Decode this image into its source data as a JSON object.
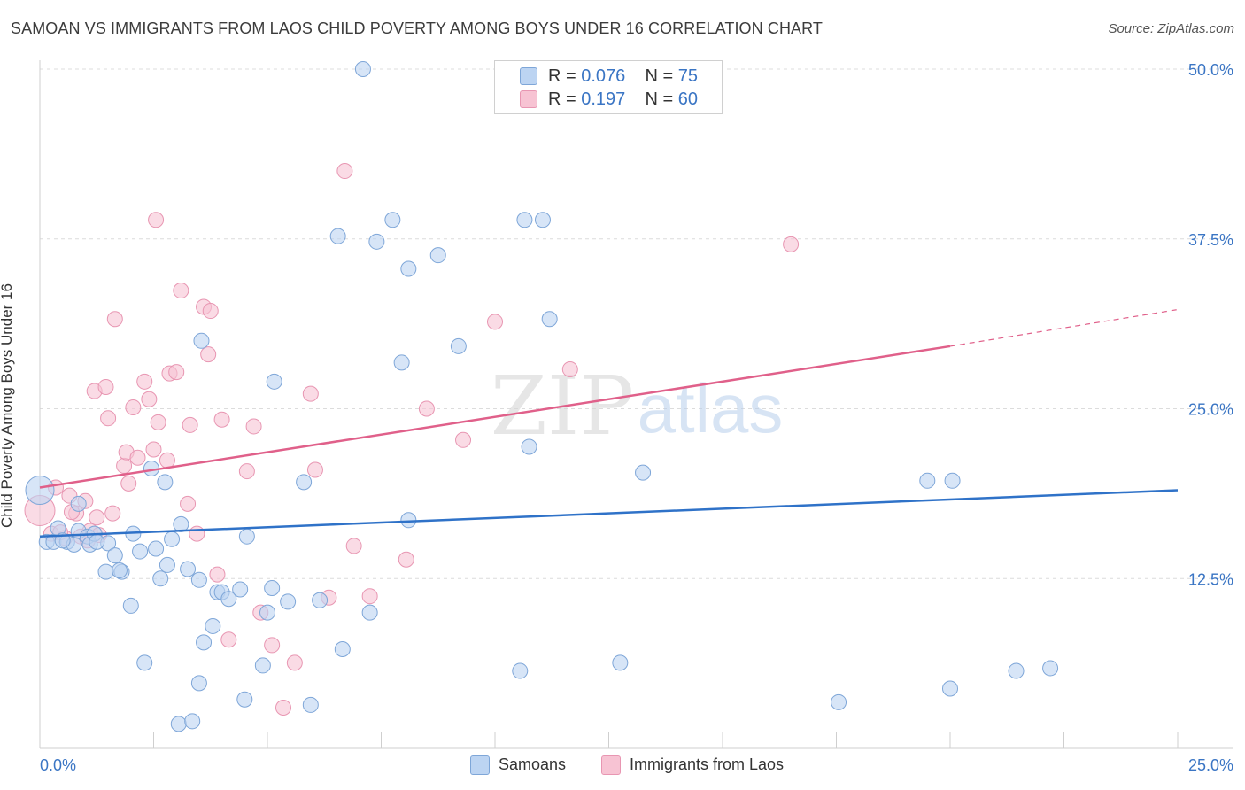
{
  "title": "SAMOAN VS IMMIGRANTS FROM LAOS CHILD POVERTY AMONG BOYS UNDER 16 CORRELATION CHART",
  "source": "Source: ZipAtlas.com",
  "watermark": {
    "zip": "ZIP",
    "atlas": "atlas"
  },
  "legend_top": {
    "row1": {
      "r_label": "R =",
      "r_value": "0.076",
      "n_label": "N =",
      "n_value": "75"
    },
    "row2": {
      "r_label": "R =",
      "r_value": "0.197",
      "n_label": "N =",
      "n_value": "60"
    }
  },
  "legend_bottom": {
    "item1": "Samoans",
    "item2": "Immigrants from Laos"
  },
  "colors": {
    "blue_fill": "#bcd4f2",
    "blue_stroke": "#7ea6d8",
    "blue_line": "#2f72c8",
    "pink_fill": "#f7c3d3",
    "pink_stroke": "#e896b2",
    "pink_line": "#e0608a",
    "tick_label": "#3a75c4",
    "grid": "#dcdcdc"
  },
  "chart_data": {
    "type": "scatter",
    "title": "SAMOAN VS IMMIGRANTS FROM LAOS CHILD POVERTY AMONG BOYS UNDER 16 CORRELATION CHART",
    "xlabel": "",
    "ylabel": "Child Poverty Among Boys Under 16",
    "xlim": [
      0,
      25
    ],
    "ylim": [
      0,
      50
    ],
    "x_tick_labels": [
      "0.0%",
      "25.0%"
    ],
    "y_ticks": [
      12.5,
      25.0,
      37.5,
      50.0
    ],
    "y_tick_labels": [
      "12.5%",
      "25.0%",
      "37.5%",
      "50.0%"
    ],
    "grid": true,
    "legend_position": "top-center",
    "series": [
      {
        "name": "Samoans",
        "color": "#bcd4f2",
        "R": 0.076,
        "N": 75,
        "trend": {
          "x": [
            0,
            25
          ],
          "y": [
            15.6,
            19.0
          ]
        },
        "points": [
          [
            0.0,
            19.0
          ],
          [
            0.15,
            15.2
          ],
          [
            0.3,
            15.2
          ],
          [
            0.4,
            16.2
          ],
          [
            0.6,
            15.2
          ],
          [
            0.75,
            15.0
          ],
          [
            0.85,
            16.0
          ],
          [
            1.05,
            15.6
          ],
          [
            1.1,
            15.0
          ],
          [
            1.2,
            15.8
          ],
          [
            1.45,
            13.0
          ],
          [
            1.5,
            15.1
          ],
          [
            1.65,
            14.2
          ],
          [
            1.8,
            13.0
          ],
          [
            2.0,
            10.5
          ],
          [
            2.05,
            15.8
          ],
          [
            2.2,
            14.5
          ],
          [
            2.3,
            6.3
          ],
          [
            2.45,
            20.6
          ],
          [
            2.65,
            12.5
          ],
          [
            2.75,
            19.6
          ],
          [
            2.8,
            13.5
          ],
          [
            2.9,
            15.4
          ],
          [
            3.05,
            1.8
          ],
          [
            3.1,
            16.5
          ],
          [
            3.25,
            13.2
          ],
          [
            3.35,
            2.0
          ],
          [
            3.5,
            4.8
          ],
          [
            3.5,
            12.4
          ],
          [
            3.55,
            30.0
          ],
          [
            3.6,
            7.8
          ],
          [
            3.8,
            9.0
          ],
          [
            3.9,
            11.5
          ],
          [
            4.0,
            11.5
          ],
          [
            4.15,
            11.0
          ],
          [
            4.4,
            11.7
          ],
          [
            4.5,
            3.6
          ],
          [
            4.55,
            15.6
          ],
          [
            4.9,
            6.1
          ],
          [
            5.0,
            10.0
          ],
          [
            5.1,
            11.8
          ],
          [
            5.15,
            27.0
          ],
          [
            5.45,
            10.8
          ],
          [
            5.8,
            19.6
          ],
          [
            5.95,
            3.2
          ],
          [
            6.15,
            10.9
          ],
          [
            6.55,
            37.7
          ],
          [
            6.65,
            7.3
          ],
          [
            7.1,
            50.0
          ],
          [
            7.25,
            10.0
          ],
          [
            7.4,
            37.3
          ],
          [
            7.75,
            38.9
          ],
          [
            7.95,
            28.4
          ],
          [
            8.1,
            16.8
          ],
          [
            8.1,
            35.3
          ],
          [
            8.75,
            36.3
          ],
          [
            9.2,
            29.6
          ],
          [
            10.55,
            5.7
          ],
          [
            10.65,
            38.9
          ],
          [
            10.75,
            22.2
          ],
          [
            11.05,
            38.9
          ],
          [
            11.2,
            31.6
          ],
          [
            12.75,
            6.3
          ],
          [
            13.25,
            20.3
          ],
          [
            17.55,
            3.4
          ],
          [
            19.5,
            19.7
          ],
          [
            20.0,
            4.4
          ],
          [
            20.05,
            19.7
          ],
          [
            21.45,
            5.7
          ],
          [
            22.2,
            5.9
          ],
          [
            0.5,
            15.3
          ],
          [
            1.25,
            15.2
          ],
          [
            1.75,
            13.1
          ],
          [
            2.55,
            14.7
          ],
          [
            0.85,
            18.0
          ]
        ]
      },
      {
        "name": "Immigrants from Laos",
        "color": "#f7c3d3",
        "R": 0.197,
        "N": 60,
        "trend": {
          "x": [
            0,
            20
          ],
          "y": [
            19.2,
            29.6
          ]
        },
        "trend_extension": {
          "x": [
            20,
            25
          ],
          "y": [
            29.6,
            32.3
          ]
        },
        "points": [
          [
            0.0,
            17.5
          ],
          [
            0.25,
            15.8
          ],
          [
            0.35,
            19.2
          ],
          [
            0.55,
            15.5
          ],
          [
            0.65,
            18.6
          ],
          [
            0.8,
            17.3
          ],
          [
            0.9,
            15.6
          ],
          [
            1.0,
            18.2
          ],
          [
            1.05,
            15.3
          ],
          [
            1.1,
            16.0
          ],
          [
            1.2,
            26.3
          ],
          [
            1.25,
            17.0
          ],
          [
            1.45,
            26.6
          ],
          [
            1.5,
            24.3
          ],
          [
            1.6,
            17.3
          ],
          [
            1.65,
            31.6
          ],
          [
            1.85,
            20.8
          ],
          [
            1.9,
            21.8
          ],
          [
            1.95,
            19.5
          ],
          [
            2.05,
            25.1
          ],
          [
            2.15,
            21.4
          ],
          [
            2.3,
            27.0
          ],
          [
            2.4,
            25.7
          ],
          [
            2.5,
            22.0
          ],
          [
            2.55,
            38.9
          ],
          [
            2.6,
            24.0
          ],
          [
            2.8,
            21.2
          ],
          [
            2.85,
            27.6
          ],
          [
            3.0,
            27.7
          ],
          [
            3.1,
            33.7
          ],
          [
            3.25,
            18.0
          ],
          [
            3.3,
            23.8
          ],
          [
            3.45,
            15.8
          ],
          [
            3.6,
            32.5
          ],
          [
            3.7,
            29.0
          ],
          [
            3.75,
            32.2
          ],
          [
            3.9,
            12.8
          ],
          [
            4.0,
            24.2
          ],
          [
            4.15,
            8.0
          ],
          [
            4.55,
            20.4
          ],
          [
            4.7,
            23.7
          ],
          [
            4.85,
            10.0
          ],
          [
            5.1,
            7.6
          ],
          [
            5.35,
            3.0
          ],
          [
            5.6,
            6.3
          ],
          [
            5.95,
            26.1
          ],
          [
            6.05,
            20.5
          ],
          [
            6.35,
            11.1
          ],
          [
            6.7,
            42.5
          ],
          [
            6.9,
            14.9
          ],
          [
            7.25,
            11.2
          ],
          [
            8.05,
            13.9
          ],
          [
            8.5,
            25.0
          ],
          [
            9.3,
            22.7
          ],
          [
            10.0,
            31.4
          ],
          [
            11.65,
            27.9
          ],
          [
            16.5,
            37.1
          ],
          [
            0.45,
            15.9
          ],
          [
            0.7,
            17.4
          ],
          [
            1.3,
            15.7
          ]
        ]
      }
    ]
  }
}
